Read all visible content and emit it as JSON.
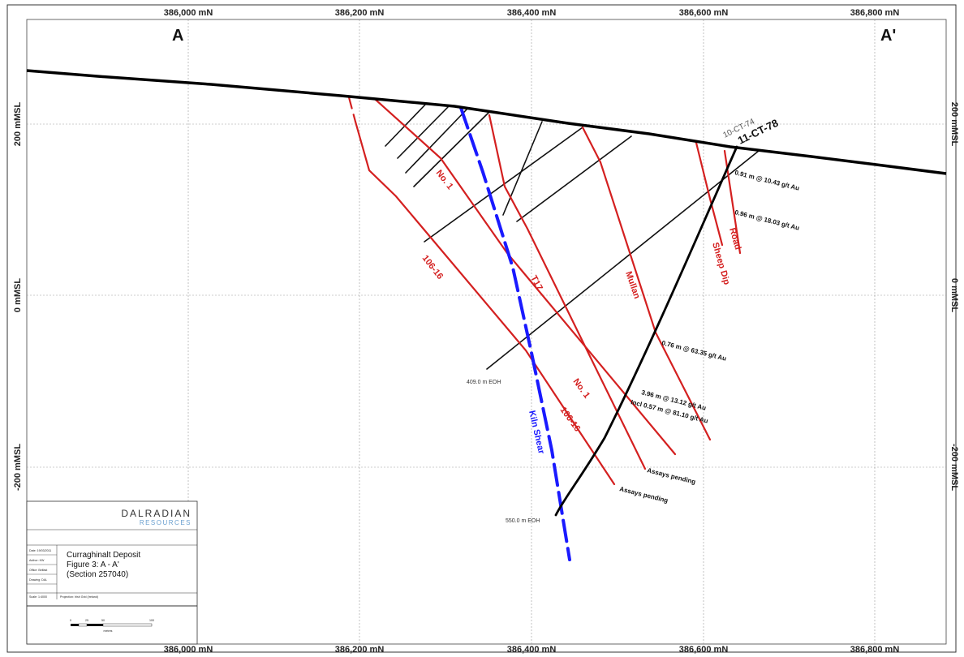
{
  "section": {
    "start_label": "A",
    "end_label": "A'",
    "easting_ticks": [
      "386,000 mN",
      "386,200 mN",
      "386,400 mN",
      "386,600 mN",
      "386,800 mN"
    ],
    "elevation_ticks": [
      "200 mMSL",
      "0 mMSL",
      "-200 mMSL"
    ]
  },
  "drillholes": {
    "main": "11-CT-78",
    "secondary": "10-CT-74",
    "eoh_short": "409.0 m EOH",
    "eoh_long": "550.0 m EOH"
  },
  "veins": {
    "no1_upper": "No. 1",
    "no1_lower": "No. 1",
    "v106_upper": "106-16",
    "v106_lower": "106-16",
    "t17": "T17",
    "mullan": "Mullan",
    "sheep_dip": "Sheep Dip",
    "road": "Road",
    "kiln_shear": "Kiln Shear"
  },
  "assays": {
    "a1": "0.91 m @ 10.43 g/t Au",
    "a2": "0.96 m @ 18.03 g/t Au",
    "a3": "0.76 m @ 63.35 g/t Au",
    "a4": "3.96 m @ 13.12 g/t Au",
    "a5": "Incl 0.57 m @ 81.10 g/t Au",
    "pending1": "Assays pending",
    "pending2": "Assays pending"
  },
  "title_block": {
    "company": "DALRADIAN",
    "company_sub": "RESOURCES",
    "title_line1": "Curraghinalt Deposit",
    "title_line2": "Figure 3: A - A'",
    "title_line3": "(Section 257040)",
    "meta_date": "Date: 19/03/2011",
    "meta_author": "Author: KW",
    "meta_office": "Office: Belfast",
    "meta_drawing": "Drawing: DAL",
    "meta_scale": "Scale: 1:4000",
    "meta_projection": "Projection: Irish Grid (Ireland)",
    "scalebar_ticks": [
      "0",
      "25",
      "50",
      "100"
    ],
    "scalebar_unit": "metres"
  },
  "colors": {
    "vein": "#d42020",
    "shear": "#1a1aff",
    "hole": "#000000",
    "grid": "#999999"
  }
}
